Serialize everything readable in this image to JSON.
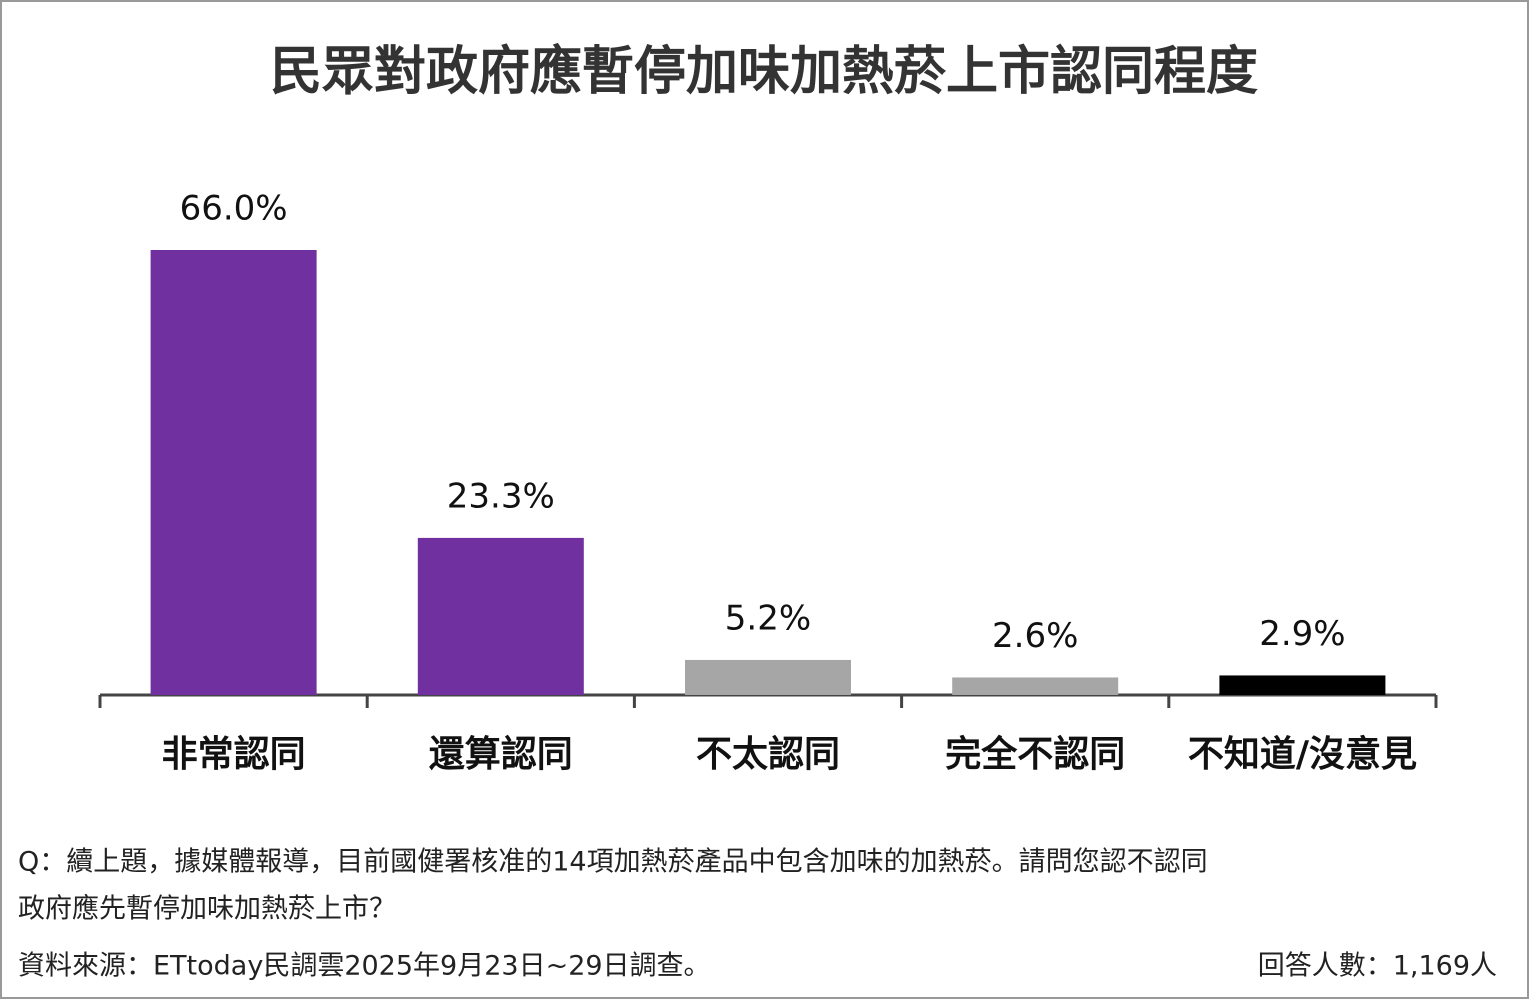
{
  "chart_data": {
    "type": "bar",
    "title": "民眾對政府應暫停加味加熱菸上市認同程度",
    "categories": [
      "非常認同",
      "還算認同",
      "不太認同",
      "完全不認同",
      "不知道/沒意見"
    ],
    "values": [
      66.0,
      23.3,
      5.2,
      2.6,
      2.9
    ],
    "value_labels": [
      "66.0%",
      "23.3%",
      "5.2%",
      "2.6%",
      "2.9%"
    ],
    "colors": [
      "#7030a0",
      "#7030a0",
      "#a6a6a6",
      "#a6a6a6",
      "#000000"
    ]
  },
  "notes": {
    "question": [
      "Q：續上題，據媒體報導，目前國健署核准的14項加熱菸產品中包含加味的加熱菸。請問您認不認同",
      "政府應先暫停加味加熱菸上市？"
    ],
    "source": "資料來源：ETtoday民調雲2025年9月23日~29日調查。",
    "respondents": "回答人數：1,169人"
  }
}
